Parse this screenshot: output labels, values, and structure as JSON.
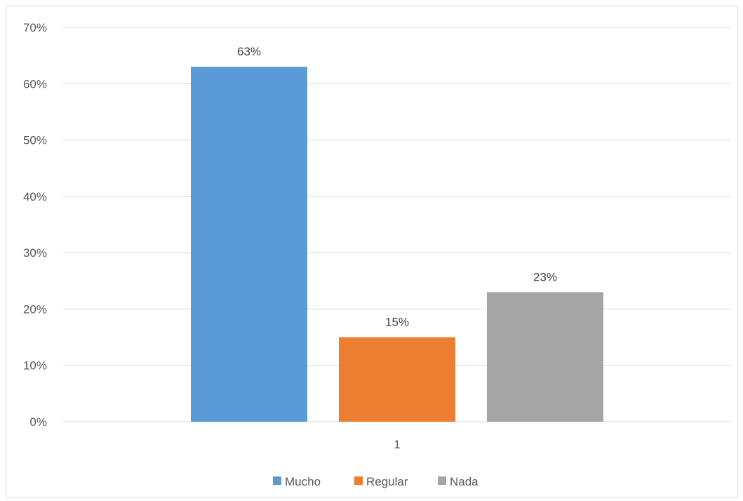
{
  "chart_data": {
    "type": "bar",
    "categories": [
      "1"
    ],
    "series": [
      {
        "name": "Mucho",
        "values": [
          0.63
        ],
        "label": "63%",
        "color": "#5b9bd5"
      },
      {
        "name": "Regular",
        "values": [
          0.15
        ],
        "label": "15%",
        "color": "#ed7d31"
      },
      {
        "name": "Nada",
        "values": [
          0.23
        ],
        "label": "23%",
        "color": "#a5a5a5"
      }
    ],
    "ylim": [
      0,
      0.7
    ],
    "yticks": [
      {
        "value": 0.0,
        "label": "0%"
      },
      {
        "value": 0.1,
        "label": "10%"
      },
      {
        "value": 0.2,
        "label": "20%"
      },
      {
        "value": 0.3,
        "label": "30%"
      },
      {
        "value": 0.4,
        "label": "40%"
      },
      {
        "value": 0.5,
        "label": "50%"
      },
      {
        "value": 0.6,
        "label": "60%"
      },
      {
        "value": 0.7,
        "label": "70%"
      }
    ],
    "grid": true,
    "legend": "bottom",
    "title": "",
    "xlabel": "",
    "ylabel": ""
  }
}
